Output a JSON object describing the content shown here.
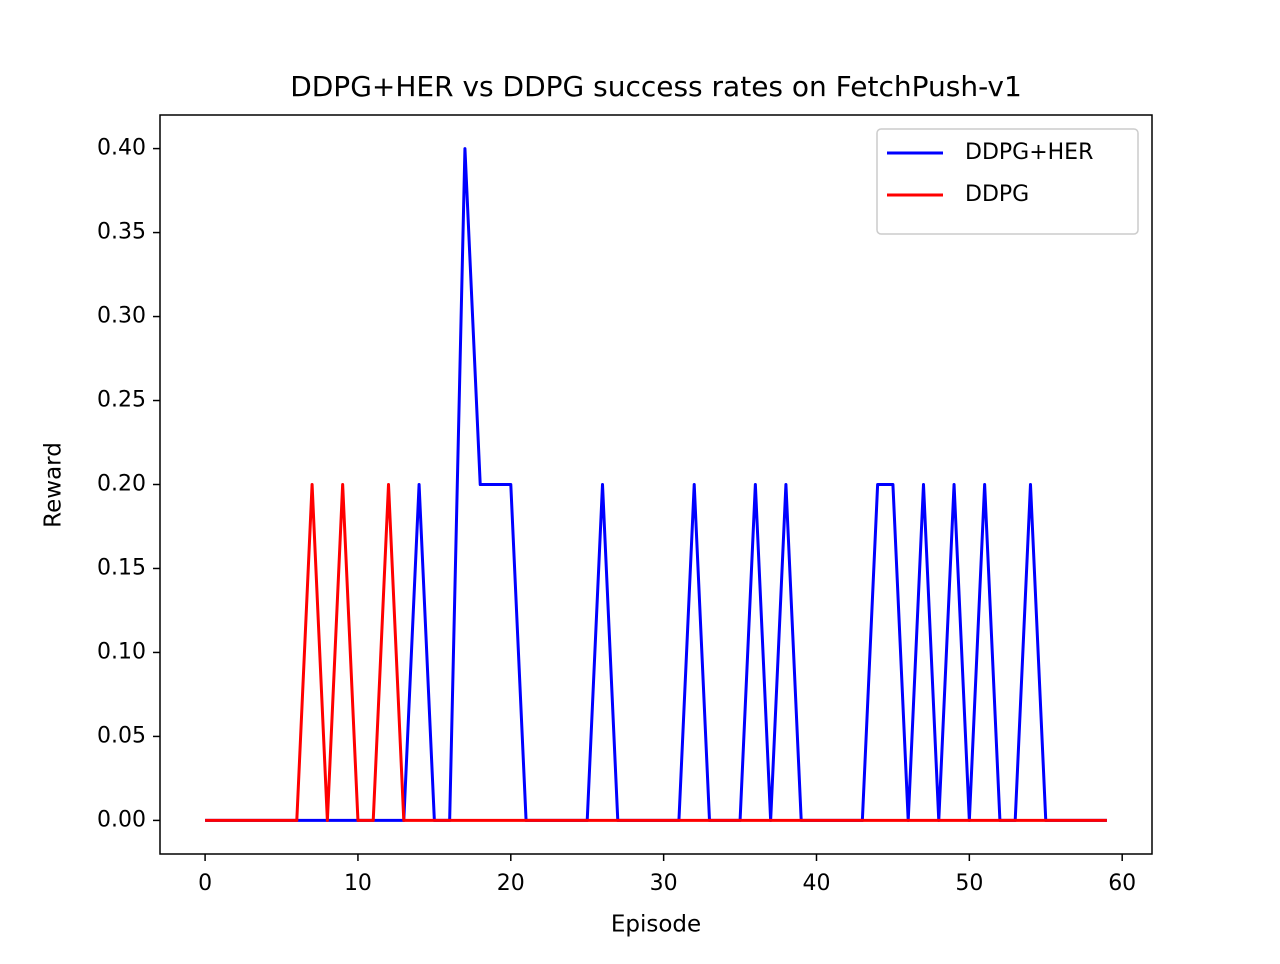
{
  "chart_data": {
    "type": "line",
    "title": "DDPG+HER vs DDPG success rates on FetchPush-v1",
    "x_label": "Episode",
    "y_label": "Reward",
    "x": [
      0,
      1,
      2,
      3,
      4,
      5,
      6,
      7,
      8,
      9,
      10,
      11,
      12,
      13,
      14,
      15,
      16,
      17,
      18,
      19,
      20,
      21,
      22,
      23,
      24,
      25,
      26,
      27,
      28,
      29,
      30,
      31,
      32,
      33,
      34,
      35,
      36,
      37,
      38,
      39,
      40,
      41,
      42,
      43,
      44,
      45,
      46,
      47,
      48,
      49,
      50,
      51,
      52,
      53,
      54,
      55,
      56,
      57,
      58,
      59
    ],
    "series": [
      {
        "name": "DDPG+HER",
        "color": "#0000ff",
        "values": [
          0,
          0,
          0,
          0,
          0,
          0,
          0,
          0,
          0,
          0,
          0,
          0,
          0,
          0,
          0.2,
          0,
          0,
          0.4,
          0.2,
          0.2,
          0.2,
          0,
          0,
          0,
          0,
          0,
          0.2,
          0,
          0,
          0,
          0,
          0,
          0.2,
          0,
          0,
          0,
          0.2,
          0,
          0.2,
          0,
          0,
          0,
          0,
          0,
          0.2,
          0.2,
          0,
          0.2,
          0,
          0.2,
          0,
          0.2,
          0,
          0,
          0.2,
          0,
          0,
          0,
          0,
          0
        ]
      },
      {
        "name": "DDPG",
        "color": "#ff0000",
        "values": [
          0,
          0,
          0,
          0,
          0,
          0,
          0,
          0.2,
          0,
          0.2,
          0,
          0,
          0.2,
          0,
          0,
          0,
          0,
          0,
          0,
          0,
          0,
          0,
          0,
          0,
          0,
          0,
          0,
          0,
          0,
          0,
          0,
          0,
          0,
          0,
          0,
          0,
          0,
          0,
          0,
          0,
          0,
          0,
          0,
          0,
          0,
          0,
          0,
          0,
          0,
          0,
          0,
          0,
          0,
          0,
          0,
          0,
          0,
          0,
          0,
          0
        ]
      }
    ],
    "xlim": [
      -2.95,
      61.95
    ],
    "xticks": [
      0,
      10,
      20,
      30,
      40,
      50,
      60
    ],
    "ylim": [
      -0.02,
      0.42
    ],
    "yticks": [
      {
        "value": 0,
        "label": "0.00"
      },
      {
        "value": 0.05,
        "label": "0.05"
      },
      {
        "value": 0.1,
        "label": "0.10"
      },
      {
        "value": 0.15,
        "label": "0.15"
      },
      {
        "value": 0.2,
        "label": "0.20"
      },
      {
        "value": 0.25,
        "label": "0.25"
      },
      {
        "value": 0.3,
        "label": "0.30"
      },
      {
        "value": 0.35,
        "label": "0.35"
      },
      {
        "value": 0.4,
        "label": "0.40"
      }
    ],
    "legend": "upper right",
    "grid": false
  }
}
